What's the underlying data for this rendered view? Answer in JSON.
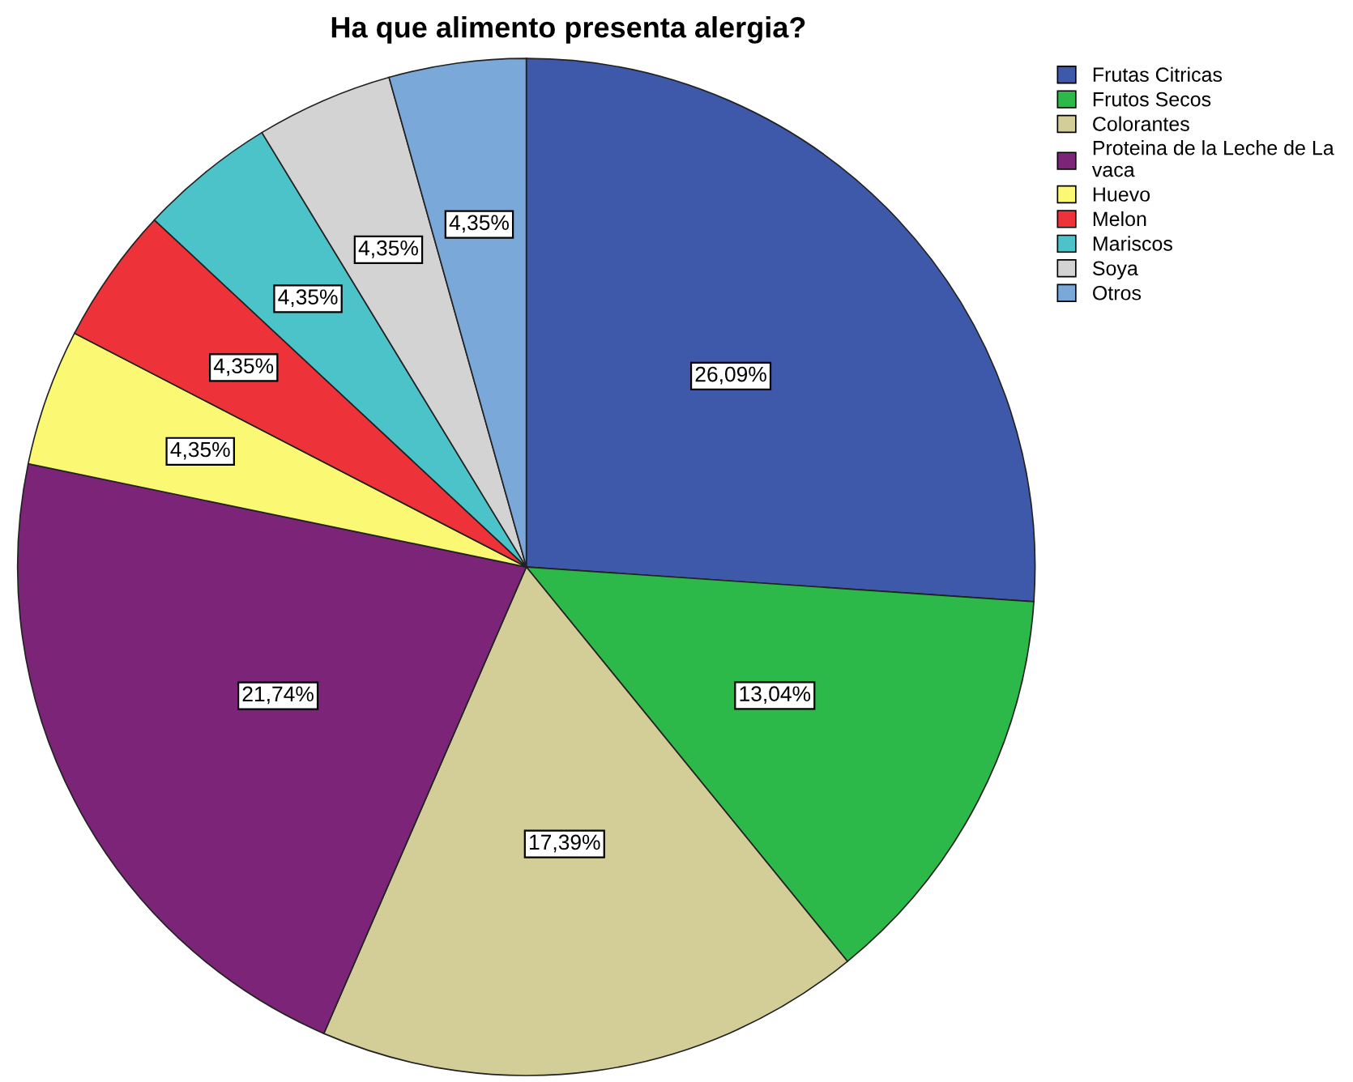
{
  "chart_data": {
    "type": "pie",
    "title": "Ha que alimento presenta alergia?",
    "categories": [
      "Frutas Citricas",
      "Frutos Secos",
      "Colorantes",
      "Proteina de la Leche de La vaca",
      "Huevo",
      "Melon",
      "Mariscos",
      "Soya",
      "Otros"
    ],
    "values": [
      26.09,
      13.04,
      17.39,
      21.74,
      4.35,
      4.35,
      4.35,
      4.35,
      4.35
    ],
    "value_labels": [
      "26,09%",
      "13,04%",
      "17,39%",
      "21,74%",
      "4,35%",
      "4,35%",
      "4,35%",
      "4,35%",
      "4,35%"
    ],
    "colors": [
      "#3f59aa",
      "#2db84a",
      "#d3ce97",
      "#7b2478",
      "#fbf873",
      "#ee3239",
      "#4bc3c9",
      "#d3d3d3",
      "#79a8d9"
    ],
    "legend": "top right"
  }
}
